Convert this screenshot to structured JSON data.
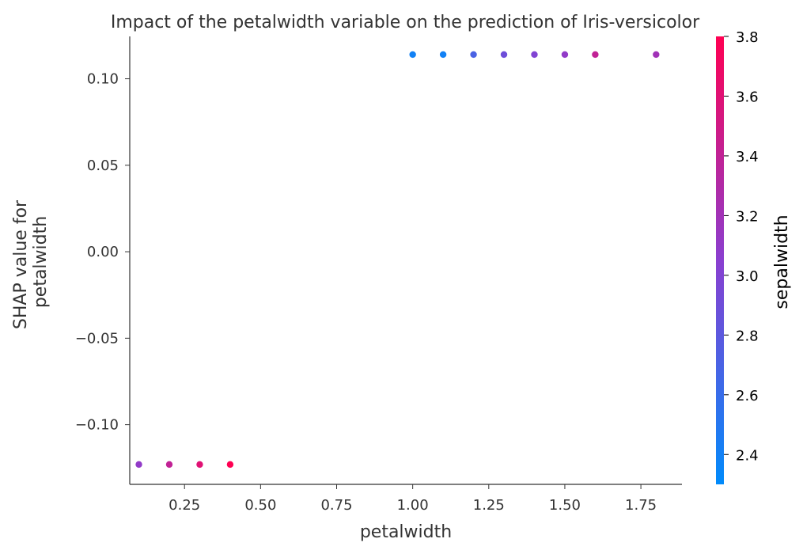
{
  "chart_data": {
    "type": "scatter",
    "title": "Impact of the petalwidth variable on the prediction of Iris-versicolor",
    "xlabel": "petalwidth",
    "ylabel_lines": [
      "SHAP value for",
      "petalwidth"
    ],
    "xlim": [
      0.07,
      1.885
    ],
    "ylim": [
      -0.1345,
      0.1245
    ],
    "xticks": [
      0.25,
      0.5,
      0.75,
      1.0,
      1.25,
      1.5,
      1.75
    ],
    "xtick_labels": [
      "0.25",
      "0.50",
      "0.75",
      "1.00",
      "1.25",
      "1.50",
      "1.75"
    ],
    "yticks": [
      0.1,
      0.05,
      0.0,
      -0.05,
      -0.1
    ],
    "ytick_labels": [
      "0.10",
      "0.05",
      "0.00",
      "−0.05",
      "−0.10"
    ],
    "points": [
      {
        "x": 1.0,
        "y": 0.114,
        "color_value": 2.4
      },
      {
        "x": 1.1,
        "y": 0.114,
        "color_value": 2.4
      },
      {
        "x": 1.2,
        "y": 0.114,
        "color_value": 2.7
      },
      {
        "x": 1.3,
        "y": 0.114,
        "color_value": 2.9
      },
      {
        "x": 1.4,
        "y": 0.114,
        "color_value": 3.0
      },
      {
        "x": 1.5,
        "y": 0.114,
        "color_value": 3.1
      },
      {
        "x": 1.6,
        "y": 0.114,
        "color_value": 3.4
      },
      {
        "x": 1.8,
        "y": 0.114,
        "color_value": 3.2
      },
      {
        "x": 0.1,
        "y": -0.123,
        "color_value": 3.1
      },
      {
        "x": 0.2,
        "y": -0.123,
        "color_value": 3.4
      },
      {
        "x": 0.3,
        "y": -0.123,
        "color_value": 3.6
      },
      {
        "x": 0.4,
        "y": -0.123,
        "color_value": 3.8
      }
    ],
    "colorbar": {
      "label": "sepalwidth",
      "min": 2.3,
      "max": 3.8,
      "ticks": [
        2.4,
        2.6,
        2.8,
        3.0,
        3.2,
        3.4,
        3.6,
        3.8
      ],
      "tick_labels": [
        "2.4",
        "2.6",
        "2.8",
        "3.0",
        "3.2",
        "3.4",
        "3.6",
        "3.8"
      ],
      "color_low": "#008bfb",
      "color_high": "#ff0052"
    },
    "grid": false,
    "legend": "colorbar-right"
  }
}
